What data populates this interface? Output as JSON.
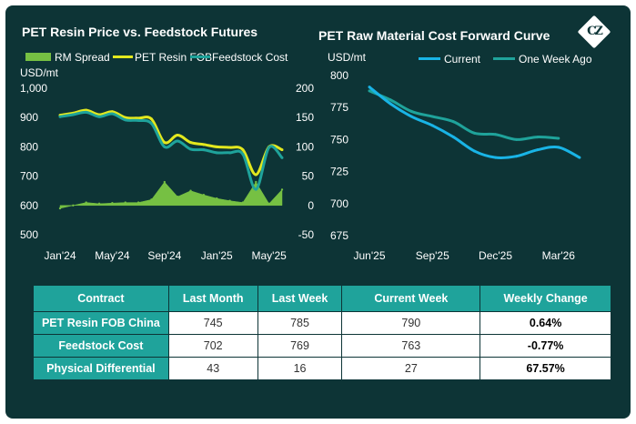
{
  "colors": {
    "background": "#0d3436",
    "rm_spread": "#76c043",
    "resin_fob": "#e3e81e",
    "feedstock": "#1fa39b",
    "current": "#19b4e6",
    "one_week_ago": "#1fa39b",
    "table_header": "#1fa39b"
  },
  "logo": {
    "text": "CZ",
    "icon": "diamond-logo-icon"
  },
  "chart_data": [
    {
      "type": "line",
      "title": "PET Resin Price vs. Feedstock Futures",
      "ylabel": "USD/mt",
      "ylim": [
        500,
        1000
      ],
      "y2lim": [
        -50,
        200
      ],
      "yticks": [
        "1,000",
        "900",
        "800",
        "700",
        "600",
        "500"
      ],
      "y2ticks": [
        "200",
        "150",
        "100",
        "50",
        "0",
        "-50"
      ],
      "xticks": [
        "Jan'24",
        "May'24",
        "Sep'24",
        "Jan'25",
        "May'25"
      ],
      "x_range": [
        "2024-01",
        "2025-06"
      ],
      "legend": [
        "RM Spread",
        "PET Resin FOB",
        "Feedstock Cost"
      ],
      "series": [
        {
          "name": "PET Resin FOB",
          "axis": "left",
          "x": [
            "2024-01",
            "2024-02",
            "2024-03",
            "2024-04",
            "2024-05",
            "2024-06",
            "2024-07",
            "2024-08",
            "2024-09",
            "2024-10",
            "2024-11",
            "2024-12",
            "2025-01",
            "2025-02",
            "2025-03",
            "2025-04",
            "2025-05",
            "2025-06"
          ],
          "values": [
            908,
            915,
            925,
            910,
            920,
            900,
            898,
            895,
            815,
            840,
            815,
            808,
            800,
            798,
            790,
            705,
            800,
            790
          ]
        },
        {
          "name": "Feedstock Cost",
          "axis": "left",
          "x": [
            "2024-01",
            "2024-02",
            "2024-03",
            "2024-04",
            "2024-05",
            "2024-06",
            "2024-07",
            "2024-08",
            "2024-09",
            "2024-10",
            "2024-11",
            "2024-12",
            "2025-01",
            "2025-02",
            "2025-03",
            "2025-04",
            "2025-05",
            "2025-06"
          ],
          "values": [
            903,
            910,
            918,
            903,
            913,
            892,
            890,
            880,
            800,
            820,
            792,
            790,
            780,
            780,
            775,
            655,
            798,
            763
          ]
        },
        {
          "name": "RM Spread",
          "type": "area",
          "axis": "right",
          "x": [
            "2024-01",
            "2024-02",
            "2024-03",
            "2024-04",
            "2024-05",
            "2024-06",
            "2024-07",
            "2024-08",
            "2024-09",
            "2024-10",
            "2024-11",
            "2024-12",
            "2025-01",
            "2025-02",
            "2025-03",
            "2025-04",
            "2025-05",
            "2025-06"
          ],
          "values": [
            -5,
            0,
            5,
            3,
            4,
            5,
            5,
            10,
            40,
            15,
            25,
            18,
            12,
            8,
            5,
            40,
            3,
            27
          ]
        }
      ]
    },
    {
      "type": "line",
      "title": "PET Raw Material Cost Forward Curve",
      "ylabel": "USD/mt",
      "ylim": [
        675,
        800
      ],
      "yticks": [
        "800",
        "775",
        "750",
        "725",
        "700",
        "675"
      ],
      "xticks": [
        "Jun'25",
        "Sep'25",
        "Dec'25",
        "Mar'26"
      ],
      "x_range": [
        "2025-06",
        "2026-05"
      ],
      "legend": [
        "Current",
        "One Week Ago"
      ],
      "series": [
        {
          "name": "Current",
          "x": [
            "2025-06",
            "2025-07",
            "2025-08",
            "2025-09",
            "2025-10",
            "2025-11",
            "2025-12",
            "2026-01",
            "2026-02",
            "2026-03",
            "2026-04"
          ],
          "values": [
            791,
            778,
            768,
            761,
            752,
            741,
            736,
            737,
            742,
            744,
            736
          ]
        },
        {
          "name": "One Week Ago",
          "x": [
            "2025-06",
            "2025-07",
            "2025-08",
            "2025-09",
            "2025-10",
            "2025-11",
            "2025-12",
            "2026-01",
            "2026-02",
            "2026-03"
          ],
          "values": [
            788,
            781,
            772,
            768,
            764,
            755,
            754,
            750,
            752,
            751
          ]
        }
      ]
    },
    {
      "type": "table",
      "columns": [
        "Contract",
        "Last Month",
        "Last Week",
        "Current Week",
        "Weekly Change"
      ],
      "rows": [
        [
          "PET Resin FOB China",
          "745",
          "785",
          "790",
          "0.64%"
        ],
        [
          "Feedstock Cost",
          "702",
          "769",
          "763",
          "-0.77%"
        ],
        [
          "Physical Differential",
          "43",
          "16",
          "27",
          "67.57%"
        ]
      ]
    }
  ]
}
